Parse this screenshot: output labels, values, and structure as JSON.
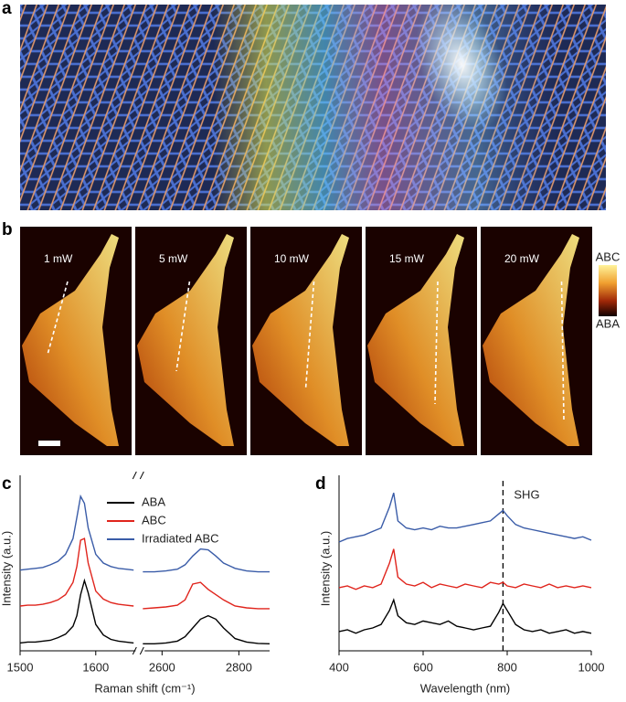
{
  "panels": {
    "a": {
      "label": "a"
    },
    "b": {
      "label": "b",
      "images": [
        {
          "label": "1 mW"
        },
        {
          "label": "5 mW"
        },
        {
          "label": "10 mW"
        },
        {
          "label": "15 mW"
        },
        {
          "label": "20 mW"
        }
      ],
      "colorbar": {
        "top": "ABC",
        "bottom": "ABA"
      }
    }
  },
  "chart_data": [
    {
      "type": "line",
      "panel_label": "c",
      "xlabel": "Raman shift (cm⁻¹)",
      "ylabel": "Intensity (a.u.)",
      "xlim": [
        1500,
        2880
      ],
      "xbreak": [
        1655,
        2550
      ],
      "xticks": [
        1500,
        1600,
        2600,
        2800
      ],
      "ylim": [
        0,
        10
      ],
      "legend": "upper-right",
      "x": [
        1500,
        1510,
        1520,
        1530,
        1540,
        1550,
        1560,
        1570,
        1575,
        1580,
        1585,
        1590,
        1600,
        1610,
        1620,
        1630,
        1640,
        1650,
        2550,
        2580,
        2610,
        2640,
        2660,
        2680,
        2700,
        2720,
        2740,
        2760,
        2790,
        2820,
        2850,
        2880
      ],
      "series": [
        {
          "name": "ABA",
          "color": "#000000",
          "values": [
            0.45,
            0.5,
            0.5,
            0.55,
            0.6,
            0.75,
            0.95,
            1.4,
            2.0,
            3.2,
            4.0,
            3.3,
            1.5,
            0.9,
            0.65,
            0.55,
            0.5,
            0.45,
            0.4,
            0.4,
            0.45,
            0.55,
            0.8,
            1.3,
            1.8,
            2.0,
            1.8,
            1.3,
            0.7,
            0.5,
            0.42,
            0.4
          ]
        },
        {
          "name": "ABC",
          "color": "#e0241c",
          "values": [
            2.55,
            2.6,
            2.6,
            2.65,
            2.75,
            2.9,
            3.2,
            3.9,
            4.8,
            6.3,
            6.4,
            5.0,
            3.4,
            2.95,
            2.75,
            2.65,
            2.6,
            2.55,
            2.4,
            2.45,
            2.5,
            2.6,
            2.9,
            3.8,
            3.9,
            3.5,
            3.2,
            2.9,
            2.55,
            2.45,
            2.4,
            2.4
          ]
        },
        {
          "name": "Irradiated ABC",
          "color": "#3a5ca8",
          "values": [
            4.6,
            4.65,
            4.7,
            4.75,
            4.9,
            5.1,
            5.5,
            6.4,
            7.6,
            8.8,
            8.4,
            7.0,
            5.5,
            5.0,
            4.8,
            4.7,
            4.65,
            4.6,
            4.5,
            4.5,
            4.55,
            4.65,
            4.9,
            5.4,
            5.8,
            5.75,
            5.4,
            5.0,
            4.7,
            4.55,
            4.5,
            4.5
          ]
        }
      ]
    },
    {
      "type": "line",
      "panel_label": "d",
      "xlabel": "Wavelength (nm)",
      "ylabel": "Intensity (a.u.)",
      "xlim": [
        400,
        1000
      ],
      "xticks": [
        400,
        600,
        800,
        1000
      ],
      "ylim": [
        0,
        10
      ],
      "annotations": [
        {
          "text": "SHG",
          "x": 790
        }
      ],
      "x": [
        400,
        420,
        440,
        460,
        480,
        500,
        520,
        530,
        540,
        560,
        580,
        600,
        620,
        640,
        660,
        680,
        700,
        720,
        740,
        760,
        780,
        790,
        800,
        820,
        840,
        860,
        880,
        900,
        920,
        940,
        960,
        980,
        1000
      ],
      "series": [
        {
          "color": "#000000",
          "values": [
            1.1,
            1.2,
            1.0,
            1.2,
            1.3,
            1.5,
            2.3,
            2.9,
            2.0,
            1.6,
            1.5,
            1.7,
            1.6,
            1.5,
            1.7,
            1.4,
            1.3,
            1.2,
            1.3,
            1.4,
            2.2,
            2.7,
            2.3,
            1.5,
            1.2,
            1.1,
            1.2,
            1.0,
            1.1,
            1.2,
            1.0,
            1.1,
            1.0
          ]
        },
        {
          "color": "#e0241c",
          "values": [
            3.6,
            3.7,
            3.5,
            3.7,
            3.6,
            3.8,
            5.0,
            5.8,
            4.2,
            3.8,
            3.7,
            3.9,
            3.6,
            3.8,
            3.7,
            3.6,
            3.8,
            3.7,
            3.6,
            3.9,
            3.8,
            3.9,
            3.7,
            3.6,
            3.8,
            3.7,
            3.6,
            3.8,
            3.6,
            3.7,
            3.6,
            3.7,
            3.6
          ]
        },
        {
          "color": "#3a5ca8",
          "values": [
            6.2,
            6.4,
            6.5,
            6.6,
            6.8,
            7.0,
            8.2,
            9.0,
            7.4,
            7.0,
            6.9,
            7.0,
            6.9,
            7.1,
            7.0,
            7.0,
            7.1,
            7.2,
            7.3,
            7.4,
            7.8,
            8.0,
            7.7,
            7.2,
            7.0,
            6.9,
            6.8,
            6.7,
            6.6,
            6.5,
            6.4,
            6.5,
            6.3
          ]
        }
      ]
    }
  ]
}
